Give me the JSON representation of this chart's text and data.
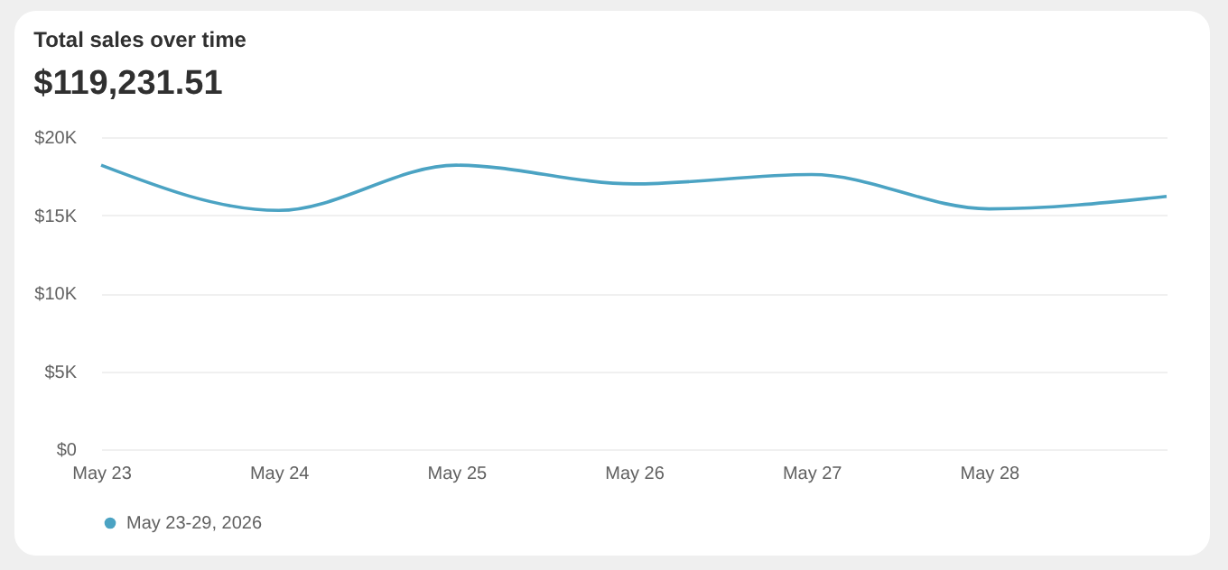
{
  "chart_data": {
    "type": "line",
    "title": "Total sales over time",
    "subtitle": "$119,231.51",
    "categories": [
      "May 23",
      "May 24",
      "May 25",
      "May 26",
      "May 27",
      "May 28",
      null
    ],
    "series": [
      {
        "name": "May 23-29, 2026",
        "color": "#4ba3c3",
        "values": [
          18200,
          15300,
          18200,
          17000,
          17600,
          15400,
          16200
        ]
      }
    ],
    "ylim": [
      0,
      20000
    ],
    "yticks": [
      {
        "value": 0,
        "label": "$0"
      },
      {
        "value": 5000,
        "label": "$5K"
      },
      {
        "value": 10000,
        "label": "$10K"
      },
      {
        "value": 15000,
        "label": "$15K"
      },
      {
        "value": 20000,
        "label": "$20K"
      }
    ],
    "grid": "y",
    "legend": "bottom",
    "marker": "none",
    "line_style": "solid"
  }
}
